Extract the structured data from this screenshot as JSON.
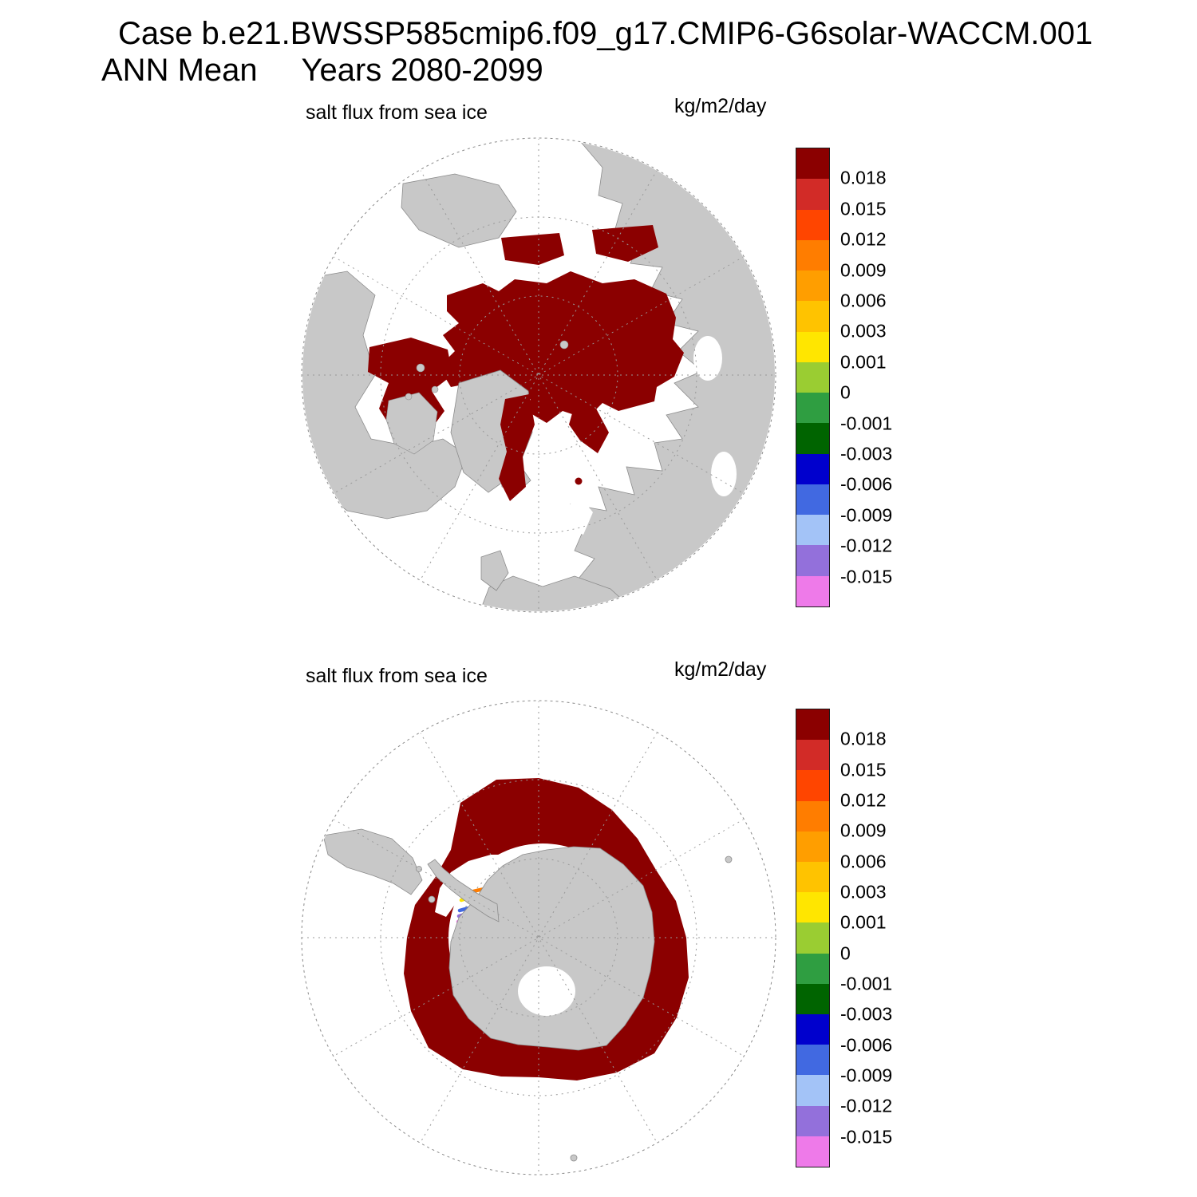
{
  "header": {
    "line1": "Case b.e21.BWSSP585cmip6.f09_g17.CMIP6-G6solar-WACCM.001",
    "line2": "ANN Mean     Years 2080-2099"
  },
  "panels": {
    "north": {
      "variable": "salt flux from sea ice",
      "units": "kg/m2/day",
      "projection": "north polar stereographic"
    },
    "south": {
      "variable": "salt flux from sea ice",
      "units": "kg/m2/day",
      "projection": "south polar stereographic"
    }
  },
  "colorbar": {
    "tick_labels": [
      "0.018",
      "0.015",
      "0.012",
      "0.009",
      "0.006",
      "0.003",
      "0.001",
      "0",
      "-0.001",
      "-0.003",
      "-0.006",
      "-0.009",
      "-0.012",
      "-0.015"
    ],
    "colors": [
      "#8b0000",
      "#d22b27",
      "#ff4500",
      "#ff7d00",
      "#ff9e00",
      "#ffc300",
      "#ffe600",
      "#9acd32",
      "#2f9e41",
      "#006400",
      "#0000cd",
      "#4169e1",
      "#a3c3f7",
      "#9370db",
      "#ee7ae9"
    ]
  },
  "map_colors": {
    "land": "#c8c8c8",
    "coast": "#8c8c8c",
    "ocean": "#ffffff",
    "grid": "#999999",
    "boundary": "#8a8a8a"
  },
  "chart_data": {
    "type": "heatmap",
    "title": "Case b.e21.BWSSP585cmip6.f09_g17.CMIP6-G6solar-WACCM.001",
    "subtitle": "ANN Mean, Years 2080-2099",
    "variable": "salt flux from sea ice",
    "units": "kg/m2/day",
    "legend_position": "right",
    "levels": [
      -0.015,
      -0.012,
      -0.009,
      -0.006,
      -0.003,
      -0.001,
      0,
      0.001,
      0.003,
      0.006,
      0.009,
      0.012,
      0.015,
      0.018
    ],
    "colors_low_to_high": [
      "#ee7ae9",
      "#9370db",
      "#a3c3f7",
      "#4169e1",
      "#0000cd",
      "#006400",
      "#2f9e41",
      "#9acd32",
      "#ffe600",
      "#ffc300",
      "#ff9e00",
      "#ff7d00",
      "#ff4500",
      "#d22b27",
      "#8b0000"
    ],
    "panels": [
      {
        "projection": "north polar stereographic",
        "region": "Arctic",
        "summary": "Salt flux > 0.018 kg/m2/day (dark red) over the ice-covered central Arctic Ocean, Canadian Archipelago, Hudson Bay, Baffin Bay, East Greenland coast and Siberian coastal seas; open ocean white; land gray"
      },
      {
        "projection": "south polar stereographic",
        "region": "Antarctic",
        "summary": "Salt flux > 0.018 kg/m2/day (dark red) in a circumpolar sea-ice ring around Antarctica; narrow negative-flux fringe (yellow/orange/blue/purple/magenta bands down to < -0.015) along the Antarctic Peninsula / Weddell Sea coast; open ocean white; land gray"
      }
    ]
  }
}
